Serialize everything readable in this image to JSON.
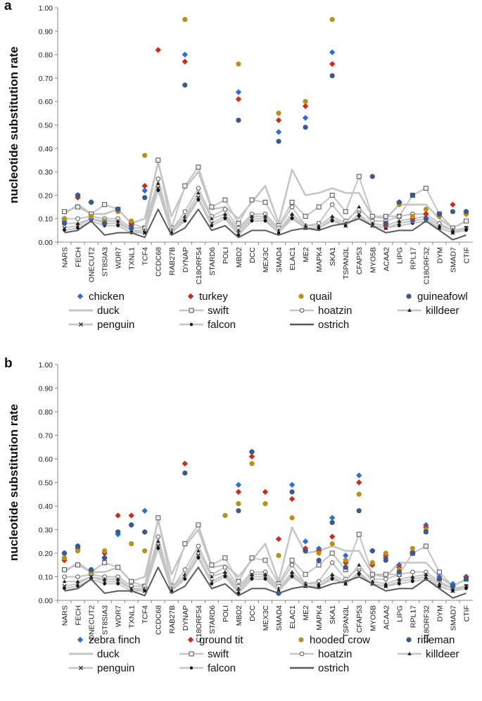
{
  "series_styles": {
    "chicken": {
      "kind": "marker",
      "shape": "diamond",
      "color": "#2a6fdb"
    },
    "turkey": {
      "kind": "marker",
      "shape": "diamond",
      "color": "#cc2a1a"
    },
    "quail": {
      "kind": "marker",
      "shape": "circle",
      "color": "#b8901a"
    },
    "guineafowl": {
      "kind": "marker",
      "shape": "circle",
      "color": "#3a5a8c"
    },
    "zebra finch": {
      "kind": "marker",
      "shape": "diamond",
      "color": "#2a6fdb"
    },
    "ground tit": {
      "kind": "marker",
      "shape": "diamond",
      "color": "#cc2a1a"
    },
    "hooded crow": {
      "kind": "marker",
      "shape": "circle",
      "color": "#b8901a"
    },
    "rifleman": {
      "kind": "marker",
      "shape": "circle",
      "color": "#3a5a8c"
    },
    "duck": {
      "kind": "line",
      "stroke": "#c4c4c4",
      "width": 2.5,
      "marker": "none"
    },
    "swift": {
      "kind": "line",
      "stroke": "#c4c4c4",
      "width": 2,
      "marker": "square"
    },
    "hoatzin": {
      "kind": "line",
      "stroke": "#c4c4c4",
      "width": 2,
      "marker": "hollow-circle"
    },
    "killdeer": {
      "kind": "line",
      "stroke": "#c4c4c4",
      "width": 2,
      "marker": "triangle"
    },
    "penguin": {
      "kind": "line",
      "stroke": "#c4c4c4",
      "width": 2,
      "marker": "x"
    },
    "falcon": {
      "kind": "line",
      "stroke": "#c4c4c4",
      "width": 2,
      "marker": "dot"
    },
    "ostrich": {
      "kind": "line",
      "stroke": "#5a5a5a",
      "width": 2,
      "marker": "none"
    }
  },
  "chart_data": [
    {
      "panel_label": "a",
      "type": "line",
      "ylabel": "nucleotide substitution rate",
      "ylim": [
        0,
        1
      ],
      "yticks": [
        "0.00",
        "0.10",
        "0.20",
        "0.30",
        "0.40",
        "0.50",
        "0.60",
        "0.70",
        "0.80",
        "0.90",
        "1.00"
      ],
      "categories": [
        "NARS",
        "FECH",
        "ONECUT2",
        "ST8SIA3",
        "WDR7",
        "TXNL1",
        "TCF4",
        "CCDC68",
        "RAB27B",
        "DYNAP",
        "C18ORF54",
        "STARD6",
        "POLI",
        "MBD2",
        "DCC",
        "MEX3C",
        "SMAD4",
        "ELAC1",
        "ME2",
        "MAPK4",
        "SKA1",
        "TSPAN3L",
        "CFAP53",
        "MYO5B",
        "ACAA2",
        "LIPG",
        "RPL17",
        "C18ORF32",
        "DYM",
        "SMAD7",
        "CTIF"
      ],
      "legend_rows": [
        [
          "chicken",
          "turkey",
          "quail",
          "guineafowl"
        ],
        [
          "duck",
          "swift",
          "hoatzin",
          "killdeer"
        ],
        [
          "penguin",
          "falcon",
          "ostrich"
        ]
      ],
      "series": [
        {
          "name": "chicken",
          "values": [
            0.09,
            0.2,
            0.1,
            0.09,
            0.14,
            0.07,
            0.22,
            null,
            null,
            0.8,
            null,
            null,
            null,
            0.64,
            null,
            null,
            0.47,
            null,
            0.53,
            null,
            0.81,
            null,
            null,
            null,
            0.08,
            0.17,
            0.09,
            0.12,
            0.11,
            null,
            0.13
          ]
        },
        {
          "name": "turkey",
          "values": [
            0.1,
            0.19,
            0.17,
            0.08,
            0.14,
            0.08,
            0.24,
            0.82,
            null,
            0.77,
            null,
            null,
            null,
            0.61,
            null,
            null,
            0.52,
            null,
            0.58,
            null,
            0.76,
            null,
            null,
            null,
            0.07,
            0.17,
            0.1,
            0.12,
            0.12,
            0.16,
            0.12
          ]
        },
        {
          "name": "quail",
          "values": [
            0.1,
            0.2,
            0.11,
            0.09,
            0.13,
            0.09,
            0.37,
            null,
            null,
            0.95,
            null,
            null,
            null,
            0.76,
            null,
            null,
            0.55,
            null,
            0.6,
            null,
            0.95,
            null,
            null,
            null,
            0.08,
            0.16,
            0.11,
            0.14,
            0.11,
            null,
            0.12
          ]
        },
        {
          "name": "guineafowl",
          "values": [
            0.08,
            0.2,
            0.17,
            0.08,
            0.14,
            0.06,
            0.19,
            null,
            null,
            0.67,
            null,
            null,
            null,
            0.52,
            null,
            null,
            0.43,
            null,
            0.49,
            null,
            0.71,
            null,
            null,
            0.28,
            0.08,
            0.17,
            0.2,
            0.1,
            0.12,
            0.13,
            0.13
          ]
        },
        {
          "name": "duck",
          "values": [
            0.12,
            0.16,
            0.12,
            0.12,
            0.14,
            0.08,
            0.1,
            0.34,
            0.11,
            0.23,
            0.3,
            0.14,
            0.15,
            0.1,
            0.17,
            0.24,
            0.08,
            0.31,
            0.2,
            0.21,
            0.23,
            0.21,
            0.21,
            0.11,
            0.1,
            0.16,
            0.16,
            0.16,
            0.1,
            0.06,
            0.09
          ]
        },
        {
          "name": "swift",
          "values": [
            0.13,
            0.15,
            0.12,
            0.16,
            0.14,
            0.08,
            0.06,
            0.35,
            0.06,
            0.24,
            0.32,
            0.15,
            0.18,
            0.08,
            0.18,
            0.17,
            0.07,
            0.17,
            0.11,
            0.15,
            0.2,
            0.13,
            0.28,
            0.11,
            0.11,
            0.11,
            0.2,
            0.23,
            0.12,
            0.06,
            0.09
          ]
        },
        {
          "name": "hoatzin",
          "values": [
            0.1,
            0.1,
            0.11,
            0.1,
            0.1,
            0.06,
            0.06,
            0.27,
            0.05,
            0.13,
            0.23,
            0.11,
            0.14,
            0.06,
            0.12,
            0.12,
            0.06,
            0.15,
            0.07,
            0.08,
            0.16,
            0.09,
            0.14,
            0.09,
            0.09,
            0.11,
            0.12,
            0.12,
            0.08,
            0.05,
            0.06
          ]
        },
        {
          "name": "killdeer",
          "values": [
            0.08,
            0.08,
            0.1,
            0.09,
            0.09,
            0.05,
            0.05,
            0.25,
            0.05,
            0.11,
            0.21,
            0.1,
            0.12,
            0.05,
            0.11,
            0.11,
            0.05,
            0.12,
            0.07,
            0.07,
            0.11,
            0.08,
            0.15,
            0.08,
            0.07,
            0.09,
            0.1,
            0.11,
            0.07,
            0.05,
            0.06
          ]
        },
        {
          "name": "penguin",
          "values": [
            0.06,
            0.07,
            0.1,
            0.08,
            0.08,
            0.05,
            0.04,
            0.23,
            0.04,
            0.1,
            0.19,
            0.08,
            0.11,
            0.04,
            0.1,
            0.1,
            0.04,
            0.11,
            0.06,
            0.06,
            0.1,
            0.07,
            0.12,
            0.07,
            0.06,
            0.08,
            0.09,
            0.1,
            0.06,
            0.04,
            0.06
          ]
        },
        {
          "name": "falcon",
          "values": [
            0.05,
            0.06,
            0.09,
            0.07,
            0.07,
            0.04,
            0.04,
            0.22,
            0.04,
            0.09,
            0.18,
            0.07,
            0.1,
            0.03,
            0.09,
            0.09,
            0.04,
            0.1,
            0.06,
            0.06,
            0.09,
            0.07,
            0.11,
            0.07,
            0.06,
            0.07,
            0.08,
            0.09,
            0.06,
            0.04,
            0.05
          ]
        },
        {
          "name": "ostrich",
          "values": [
            0.04,
            0.05,
            0.09,
            0.03,
            0.04,
            0.04,
            0.02,
            0.14,
            0.03,
            0.06,
            0.14,
            0.05,
            0.07,
            0.02,
            0.05,
            0.05,
            0.03,
            0.05,
            0.06,
            0.05,
            0.07,
            0.08,
            0.1,
            0.07,
            0.04,
            0.05,
            0.05,
            0.09,
            0.05,
            0.01,
            0.03
          ]
        }
      ]
    },
    {
      "panel_label": "b",
      "type": "line",
      "ylabel": "nucleotide substitution rate",
      "ylim": [
        0,
        1
      ],
      "yticks": [
        "0.00",
        "0.10",
        "0.20",
        "0.30",
        "0.40",
        "0.50",
        "0.60",
        "0.70",
        "0.80",
        "0.90",
        "1.00"
      ],
      "categories": [
        "NARS",
        "FECH",
        "ONECUT2",
        "ST8SIA3",
        "WDR7",
        "TXNL1",
        "TCF4",
        "CCDC68",
        "RAB27B",
        "DYNAP",
        "C18ORF54",
        "STARD6",
        "POLI",
        "MBD2",
        "DCC",
        "MEX3C",
        "SMAD4",
        "ELAC1",
        "ME2",
        "MAPK4",
        "SKA1",
        "TSPAN3L",
        "CFAP53",
        "MYO5B",
        "ACAA2",
        "LIPG",
        "RPL17",
        "C18ORF32",
        "DYM",
        "SMAD7",
        "CTIF"
      ],
      "legend_rows": [
        [
          "zebra finch",
          "ground tit",
          "hooded crow",
          "rifleman"
        ],
        [
          "duck",
          "swift",
          "hoatzin",
          "killdeer"
        ],
        [
          "penguin",
          "falcon",
          "ostrich"
        ]
      ],
      "series": [
        {
          "name": "zebra finch",
          "values": [
            0.2,
            0.23,
            0.12,
            0.18,
            0.28,
            0.32,
            0.38,
            null,
            null,
            null,
            null,
            null,
            null,
            0.49,
            0.63,
            null,
            0.03,
            0.49,
            0.25,
            0.22,
            0.35,
            0.19,
            0.53,
            0.21,
            0.18,
            0.15,
            0.2,
            0.32,
            0.1,
            0.07,
            0.1
          ]
        },
        {
          "name": "ground tit",
          "values": [
            0.17,
            0.22,
            0.13,
            0.2,
            0.36,
            0.36,
            0.29,
            null,
            null,
            0.58,
            null,
            null,
            null,
            0.46,
            0.61,
            0.46,
            0.26,
            0.43,
            0.22,
            0.21,
            0.27,
            0.16,
            0.5,
            0.15,
            0.19,
            0.14,
            0.2,
            0.31,
            0.09,
            0.06,
            0.1
          ]
        },
        {
          "name": "hooded crow",
          "values": [
            0.18,
            0.21,
            0.12,
            0.21,
            0.29,
            0.24,
            0.21,
            null,
            null,
            null,
            null,
            null,
            0.36,
            0.41,
            0.58,
            0.41,
            0.19,
            0.35,
            0.21,
            0.2,
            0.24,
            0.17,
            0.45,
            0.16,
            0.2,
            0.13,
            0.22,
            0.3,
            0.09,
            0.06,
            0.09
          ]
        },
        {
          "name": "rifleman",
          "values": [
            0.2,
            0.23,
            0.13,
            0.18,
            0.29,
            0.32,
            0.29,
            null,
            null,
            0.54,
            null,
            null,
            null,
            0.38,
            0.63,
            null,
            0.03,
            0.46,
            0.21,
            0.17,
            0.33,
            0.14,
            0.38,
            0.21,
            0.17,
            0.12,
            0.2,
            0.29,
            0.09,
            0.06,
            0.09
          ]
        },
        {
          "name": "duck",
          "values": [
            0.12,
            0.16,
            0.12,
            0.12,
            0.14,
            0.08,
            0.1,
            0.34,
            0.11,
            0.23,
            0.3,
            0.14,
            0.15,
            0.1,
            0.17,
            0.24,
            0.08,
            0.31,
            0.2,
            0.21,
            0.23,
            0.21,
            0.21,
            0.11,
            0.1,
            0.16,
            0.16,
            0.16,
            0.1,
            0.06,
            0.09
          ]
        },
        {
          "name": "swift",
          "values": [
            0.13,
            0.15,
            0.12,
            0.16,
            0.14,
            0.08,
            0.06,
            0.35,
            0.06,
            0.24,
            0.32,
            0.15,
            0.18,
            0.08,
            0.18,
            0.17,
            0.07,
            0.17,
            0.11,
            0.15,
            0.2,
            0.13,
            0.28,
            0.11,
            0.11,
            0.11,
            0.2,
            0.23,
            0.12,
            0.06,
            0.09
          ]
        },
        {
          "name": "hoatzin",
          "values": [
            0.1,
            0.1,
            0.11,
            0.1,
            0.1,
            0.06,
            0.06,
            0.27,
            0.05,
            0.13,
            0.23,
            0.11,
            0.14,
            0.06,
            0.12,
            0.12,
            0.06,
            0.15,
            0.07,
            0.08,
            0.16,
            0.09,
            0.14,
            0.09,
            0.09,
            0.11,
            0.12,
            0.12,
            0.08,
            0.05,
            0.06
          ]
        },
        {
          "name": "killdeer",
          "values": [
            0.08,
            0.08,
            0.1,
            0.09,
            0.09,
            0.05,
            0.05,
            0.25,
            0.05,
            0.11,
            0.21,
            0.1,
            0.12,
            0.05,
            0.11,
            0.11,
            0.05,
            0.12,
            0.07,
            0.07,
            0.11,
            0.08,
            0.15,
            0.08,
            0.07,
            0.09,
            0.1,
            0.11,
            0.07,
            0.05,
            0.06
          ]
        },
        {
          "name": "penguin",
          "values": [
            0.06,
            0.07,
            0.1,
            0.08,
            0.08,
            0.05,
            0.04,
            0.23,
            0.04,
            0.1,
            0.19,
            0.08,
            0.11,
            0.04,
            0.1,
            0.1,
            0.04,
            0.11,
            0.06,
            0.06,
            0.1,
            0.07,
            0.12,
            0.07,
            0.06,
            0.08,
            0.09,
            0.1,
            0.06,
            0.04,
            0.06
          ]
        },
        {
          "name": "falcon",
          "values": [
            0.05,
            0.06,
            0.09,
            0.07,
            0.07,
            0.04,
            0.04,
            0.22,
            0.04,
            0.09,
            0.18,
            0.07,
            0.1,
            0.03,
            0.09,
            0.09,
            0.04,
            0.1,
            0.06,
            0.06,
            0.09,
            0.07,
            0.11,
            0.07,
            0.06,
            0.07,
            0.08,
            0.09,
            0.06,
            0.04,
            0.05
          ]
        },
        {
          "name": "ostrich",
          "values": [
            0.04,
            0.05,
            0.09,
            0.03,
            0.04,
            0.04,
            0.02,
            0.14,
            0.03,
            0.06,
            0.14,
            0.05,
            0.07,
            0.02,
            0.05,
            0.05,
            0.03,
            0.05,
            0.06,
            0.05,
            0.07,
            0.08,
            0.1,
            0.07,
            0.04,
            0.05,
            0.05,
            0.09,
            0.05,
            0.01,
            0.03
          ]
        }
      ]
    }
  ]
}
